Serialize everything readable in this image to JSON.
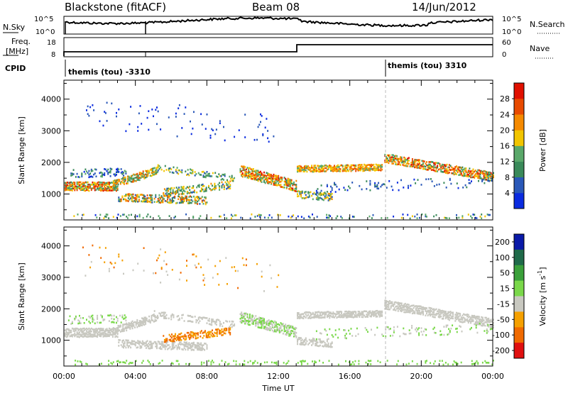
{
  "header": {
    "station": "Blackstone (fitACF)",
    "beam": "Beam 08",
    "date": "14/Jun/2012"
  },
  "status_panel": {
    "nsky_label": "N.Sky",
    "nsearch_label": "N.Search",
    "freq_label_1": "Freq.",
    "freq_label_2": "[MHz]",
    "nave_label": "Nave",
    "cpid_label": "CPID",
    "nsky_ticks": [
      "10^5",
      "10^0"
    ],
    "nsearch_ticks": [
      "10^5",
      "10^0"
    ],
    "freq_ticks": [
      "18",
      "8"
    ],
    "nave_ticks": [
      "60",
      "0"
    ],
    "cpid_segments": [
      {
        "start_hour": 0,
        "text": "themis (tou) -3310"
      },
      {
        "start_hour": 18,
        "text": "themis (tou) 3310"
      }
    ]
  },
  "chart_data": [
    {
      "type": "heatmap",
      "panel": "power",
      "ylabel": "Slant Range [km]",
      "yticks": [
        1000,
        2000,
        3000,
        4000
      ],
      "ylim": [
        180,
        4600
      ],
      "xlim": [
        0,
        24
      ],
      "colorbar": {
        "label": "Power [dB]",
        "ticks": [
          "4",
          "8",
          "12",
          "16",
          "20",
          "24",
          "28"
        ],
        "colors": [
          "#0a2be0",
          "#2a58b8",
          "#3a8a5a",
          "#5aa86a",
          "#f2c500",
          "#f58a00",
          "#e84a00",
          "#e01000"
        ]
      },
      "bands": [
        {
          "start": 0.0,
          "end": 3.0,
          "r0": 1250,
          "r1": 1250,
          "w": 300,
          "vmin": 2,
          "vmax": 7,
          "d": 0.85
        },
        {
          "start": 0.2,
          "end": 3.5,
          "r0": 1650,
          "r1": 1700,
          "w": 280,
          "vmin": 0,
          "vmax": 3,
          "d": 0.3
        },
        {
          "start": 2.7,
          "end": 5.2,
          "r0": 1300,
          "r1": 1750,
          "w": 260,
          "vmin": 2,
          "vmax": 6,
          "d": 0.7
        },
        {
          "start": 3.0,
          "end": 8.0,
          "r0": 900,
          "r1": 800,
          "w": 260,
          "vmin": 1,
          "vmax": 6,
          "d": 0.55
        },
        {
          "start": 5.0,
          "end": 9.5,
          "r0": 1850,
          "r1": 1500,
          "w": 220,
          "vmin": 1,
          "vmax": 4,
          "d": 0.35
        },
        {
          "start": 5.5,
          "end": 9.3,
          "r0": 1050,
          "r1": 1300,
          "w": 250,
          "vmin": 1,
          "vmax": 5,
          "d": 0.45
        },
        {
          "start": 9.8,
          "end": 13.0,
          "r0": 1750,
          "r1": 1250,
          "w": 360,
          "vmin": 2,
          "vmax": 7,
          "d": 0.7
        },
        {
          "start": 13.0,
          "end": 17.8,
          "r0": 1800,
          "r1": 1850,
          "w": 220,
          "vmin": 3,
          "vmax": 6,
          "d": 0.8
        },
        {
          "start": 13.0,
          "end": 15.0,
          "r0": 1000,
          "r1": 900,
          "w": 250,
          "vmin": 1,
          "vmax": 5,
          "d": 0.5
        },
        {
          "start": 17.9,
          "end": 24.0,
          "r0": 2150,
          "r1": 1550,
          "w": 300,
          "vmin": 2,
          "vmax": 7,
          "d": 0.8
        },
        {
          "start": 14.0,
          "end": 24.0,
          "r0": 1200,
          "r1": 1400,
          "w": 350,
          "vmin": 0,
          "vmax": 2,
          "d": 0.12
        },
        {
          "start": 0.5,
          "end": 24.0,
          "r0": 300,
          "r1": 300,
          "w": 150,
          "vmin": 0,
          "vmax": 4,
          "d": 0.12
        },
        {
          "start": 1.0,
          "end": 12.0,
          "r0": 3600,
          "r1": 3000,
          "w": 1100,
          "vmin": 0,
          "vmax": 1,
          "d": 0.02
        }
      ]
    },
    {
      "type": "heatmap",
      "panel": "velocity",
      "ylabel": "Slant Range [km]",
      "yticks": [
        1000,
        2000,
        3000,
        4000
      ],
      "ylim": [
        180,
        4600
      ],
      "xlim": [
        0,
        24
      ],
      "xlabel": "Time UT",
      "xticks": [
        "00:00",
        "04:00",
        "08:00",
        "12:00",
        "16:00",
        "20:00",
        "00:00"
      ],
      "colorbar": {
        "label": "Velocity [m s^-1]",
        "ticks": [
          "200",
          "100",
          "50",
          "15",
          "-15",
          "-50",
          "-100",
          "-200"
        ],
        "colors": [
          "#0a1aa8",
          "#1f6a4a",
          "#3aa03a",
          "#7ad84a",
          "#c8c8c0",
          "#f5a000",
          "#f06a00",
          "#e01010"
        ]
      },
      "bands": [
        {
          "start": 0.0,
          "end": 3.0,
          "r0": 1250,
          "r1": 1250,
          "w": 300,
          "vmin": 4,
          "vmax": 4,
          "d": 0.85
        },
        {
          "start": 0.2,
          "end": 3.5,
          "r0": 1650,
          "r1": 1700,
          "w": 280,
          "vmin": 3,
          "vmax": 4,
          "d": 0.3
        },
        {
          "start": 2.7,
          "end": 5.2,
          "r0": 1300,
          "r1": 1750,
          "w": 260,
          "vmin": 4,
          "vmax": 4,
          "d": 0.7
        },
        {
          "start": 3.0,
          "end": 8.0,
          "r0": 900,
          "r1": 800,
          "w": 260,
          "vmin": 4,
          "vmax": 4,
          "d": 0.55
        },
        {
          "start": 5.5,
          "end": 9.3,
          "r0": 1050,
          "r1": 1300,
          "w": 250,
          "vmin": 5,
          "vmax": 6,
          "d": 0.5
        },
        {
          "start": 5.0,
          "end": 9.5,
          "r0": 1850,
          "r1": 1500,
          "w": 220,
          "vmin": 4,
          "vmax": 4,
          "d": 0.35
        },
        {
          "start": 9.8,
          "end": 13.0,
          "r0": 1750,
          "r1": 1250,
          "w": 360,
          "vmin": 3,
          "vmax": 4,
          "d": 0.6
        },
        {
          "start": 13.0,
          "end": 17.8,
          "r0": 1800,
          "r1": 1850,
          "w": 220,
          "vmin": 4,
          "vmax": 4,
          "d": 0.8
        },
        {
          "start": 13.0,
          "end": 15.0,
          "r0": 1000,
          "r1": 900,
          "w": 250,
          "vmin": 4,
          "vmax": 4,
          "d": 0.5
        },
        {
          "start": 17.9,
          "end": 24.0,
          "r0": 2150,
          "r1": 1550,
          "w": 300,
          "vmin": 4,
          "vmax": 4,
          "d": 0.8
        },
        {
          "start": 14.0,
          "end": 24.0,
          "r0": 1200,
          "r1": 1400,
          "w": 350,
          "vmin": 3,
          "vmax": 4,
          "d": 0.12
        },
        {
          "start": 0.5,
          "end": 24.0,
          "r0": 300,
          "r1": 300,
          "w": 150,
          "vmin": 3,
          "vmax": 3,
          "d": 0.15
        },
        {
          "start": 1.0,
          "end": 12.0,
          "r0": 3600,
          "r1": 3000,
          "w": 1100,
          "vmin": 4,
          "vmax": 6,
          "d": 0.02
        }
      ]
    }
  ]
}
